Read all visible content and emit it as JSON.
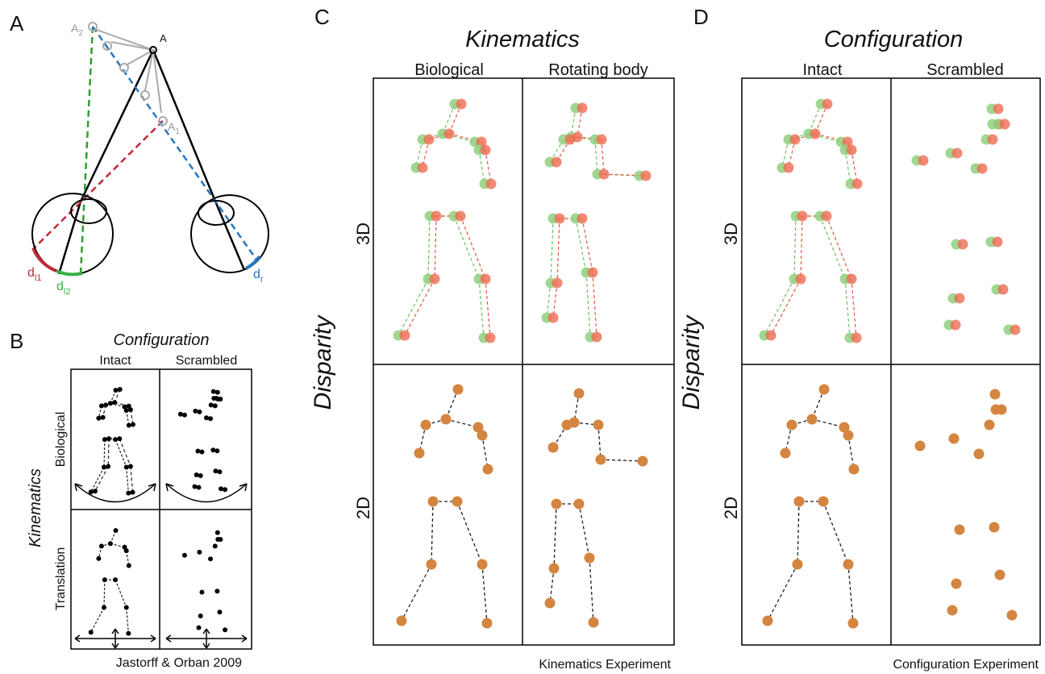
{
  "panels": {
    "a": {
      "letter": "A",
      "point": "A",
      "a2": {
        "base": "A",
        "sub": "2"
      },
      "a1": {
        "base": "A",
        "sub": "1"
      },
      "dl1": {
        "base": "d",
        "sub": "l1"
      },
      "dl2": {
        "base": "d",
        "sub": "l2"
      },
      "dr": {
        "base": "d",
        "sub": "r"
      }
    },
    "b": {
      "letter": "B",
      "title": "Configuration",
      "columns": [
        "Intact",
        "Scrambled"
      ],
      "row_axis": "Kinematics",
      "rows": [
        "Biological",
        "Translation"
      ],
      "credit": "Jastorff & Orban 2009"
    },
    "c": {
      "letter": "C",
      "title": "Kinematics",
      "columns": [
        "Biological",
        "Rotating body"
      ],
      "row_axis": "Disparity",
      "rows": [
        "3D",
        "2D"
      ],
      "caption": "Kinematics Experiment"
    },
    "d": {
      "letter": "D",
      "title": "Configuration",
      "columns": [
        "Intact",
        "Scrambled"
      ],
      "row_axis": "Disparity",
      "rows": [
        "3D",
        "2D"
      ],
      "caption": "Configuration Experiment"
    }
  }
}
